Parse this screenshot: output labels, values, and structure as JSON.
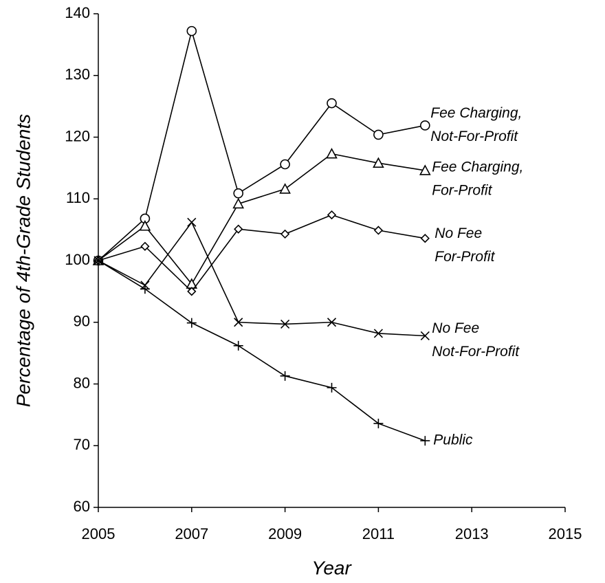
{
  "chart_data": {
    "type": "line",
    "x_label": "Year",
    "y_label": "Percentage of 4th-Grade Students",
    "x": [
      2005,
      2006,
      2007,
      2008,
      2009,
      2010,
      2011,
      2012
    ],
    "xlim": [
      2005,
      2015
    ],
    "xticks": [
      2005,
      2007,
      2009,
      2011,
      2013,
      2015
    ],
    "ylim": [
      60,
      140
    ],
    "yticks": [
      60,
      70,
      80,
      90,
      100,
      110,
      120,
      130,
      140
    ],
    "series": [
      {
        "name": [
          "Fee Charging,",
          "Not-For-Profit"
        ],
        "color": "#000000",
        "marker": "circle",
        "values": [
          100,
          106.8,
          137.2,
          110.9,
          115.6,
          125.5,
          120.4,
          121.9
        ]
      },
      {
        "name": [
          "Fee Charging,",
          "For-Profit"
        ],
        "color": "#000000",
        "marker": "triangle",
        "values": [
          100,
          105.6,
          96.2,
          109.2,
          111.6,
          117.3,
          115.8,
          114.6
        ]
      },
      {
        "name": [
          "No Fee",
          "For-Profit"
        ],
        "color": "#000000",
        "marker": "diamond",
        "values": [
          100,
          102.3,
          95,
          105.1,
          104.3,
          107.4,
          104.9,
          103.6
        ]
      },
      {
        "name": [
          "No Fee",
          "Not-For-Profit"
        ],
        "color": "#000000",
        "marker": "x",
        "values": [
          100,
          96,
          106.2,
          90,
          89.7,
          90,
          88.2,
          87.8
        ]
      },
      {
        "name": [
          "Public"
        ],
        "color": "#000000",
        "marker": "plus",
        "values": [
          100,
          95.4,
          89.9,
          86.2,
          81.3,
          79.4,
          73.6,
          70.8
        ]
      }
    ]
  }
}
